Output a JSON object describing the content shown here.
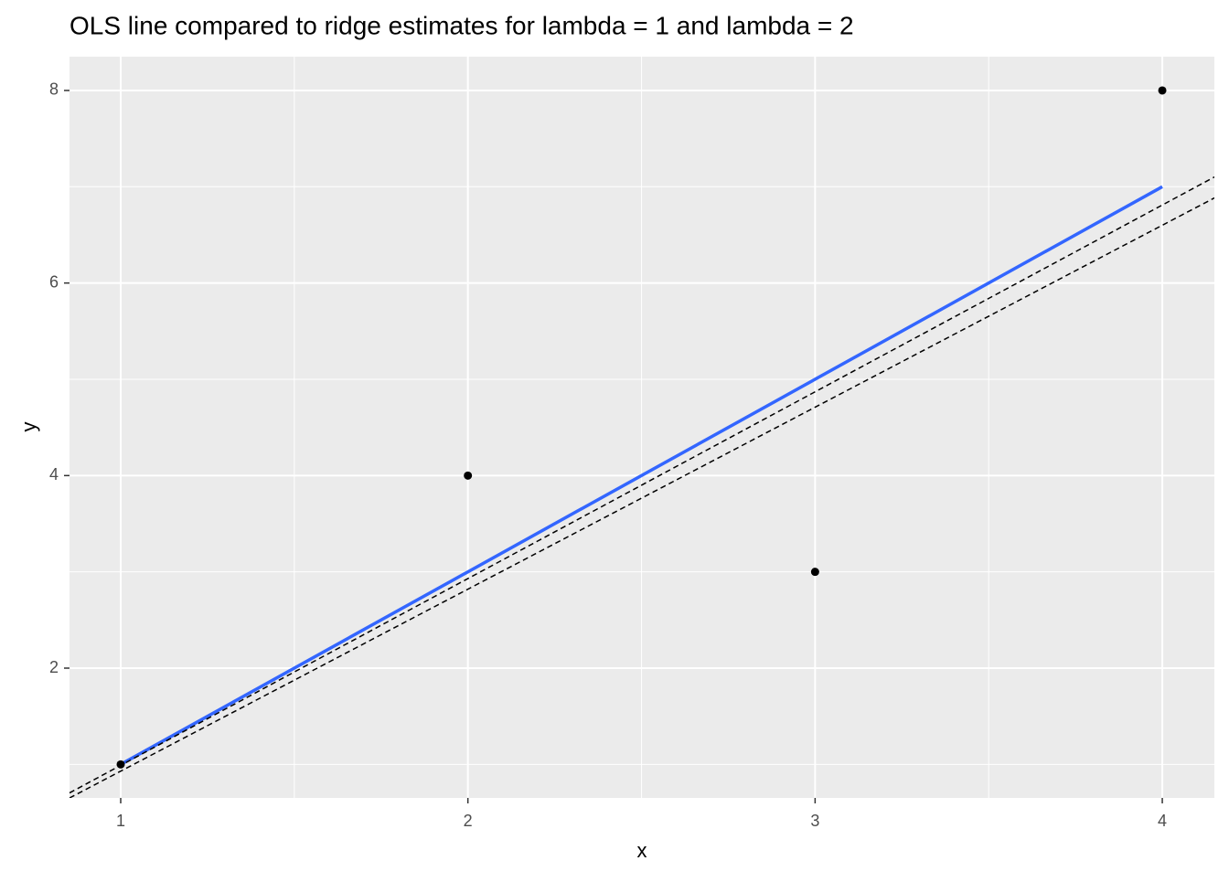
{
  "chart_data": {
    "type": "scatter",
    "title": "OLS line compared to ridge estimates for lambda = 1 and lambda = 2",
    "xlabel": "x",
    "ylabel": "y",
    "x": [
      1,
      2,
      3,
      4
    ],
    "values": [
      1,
      4,
      3,
      8
    ],
    "color": "#000000",
    "ols": {
      "x": [
        1,
        4
      ],
      "values": [
        1,
        7
      ],
      "color": "#3366FF"
    },
    "ridge_lines": [
      {
        "intercept": -0.95,
        "slope": 1.94,
        "color": "#000000"
      },
      {
        "intercept": -0.96,
        "slope": 1.89,
        "color": "#000000"
      }
    ],
    "xlim": [
      0.8525,
      4.15
    ],
    "ylim": [
      0.652,
      8.351
    ],
    "xticks": [
      1,
      2,
      3,
      4
    ],
    "yticks": [
      2,
      4,
      6,
      8
    ],
    "x_minor_grid": [
      1.5,
      2.5,
      3.5
    ],
    "y_minor_grid": [
      1,
      3,
      5,
      7
    ],
    "grid": true
  }
}
